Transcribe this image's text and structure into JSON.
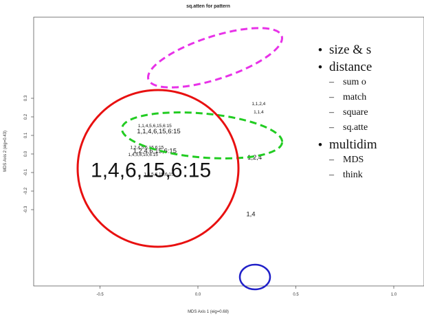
{
  "chart_data": {
    "type": "scatter",
    "title": "sq.atten for pattern",
    "xlabel": "MDS Axis 1 (eig=0.68)",
    "ylabel": "MDS Axis 2 (eig=0.43)",
    "xlim": [
      -0.8,
      1.2
    ],
    "ylim": [
      -0.35,
      0.32
    ],
    "x_ticks": [
      "-0.5",
      "0.0",
      "0.5",
      "1.0"
    ],
    "y_ticks": [
      "-0.3",
      "-0.2",
      "-0.1",
      "0.0",
      "0.1",
      "0.2",
      "0.3"
    ],
    "points": [
      {
        "label": "1,1,2,4",
        "x": 0.31,
        "y": 0.27,
        "size": "small"
      },
      {
        "label": "1,1,4",
        "x": 0.31,
        "y": 0.225,
        "size": "small"
      },
      {
        "label": "1,1,4,5,6,15,6:15",
        "x": -0.22,
        "y": 0.15,
        "size": "small"
      },
      {
        "label": "1,1,4,6,15,6:15",
        "x": -0.2,
        "y": 0.12,
        "size": "medium"
      },
      {
        "label": "1,2,4,5,6,15,6:15",
        "x": -0.26,
        "y": 0.035,
        "size": "small"
      },
      {
        "label": "1,2,4,6,15,6:15",
        "x": -0.22,
        "y": 0.015,
        "size": "medium"
      },
      {
        "label": "1,4,5,6,15,6:15",
        "x": -0.28,
        "y": -0.005,
        "size": "small"
      },
      {
        "label": "1,2,4",
        "x": 0.29,
        "y": -0.02,
        "size": "medium"
      },
      {
        "label": "1,4,6,15,6:15",
        "x": -0.24,
        "y": -0.095,
        "size": "large"
      },
      {
        "label": "1,4,5,6,15,6:15",
        "x": -0.2,
        "y": -0.11,
        "size": "small"
      },
      {
        "label": "1,4",
        "x": 0.27,
        "y": -0.325,
        "size": "medium"
      }
    ],
    "grid": false,
    "highlights": [
      {
        "shape": "ellipse",
        "style": "dashed",
        "color": "#e832e8",
        "encloses": [
          "1,1,2,4",
          "1,1,4",
          "1,1,4,5,6,15,6:15",
          "1,1,4,6,15,6:15"
        ]
      },
      {
        "shape": "ellipse",
        "style": "dashed",
        "color": "#22cc22",
        "encloses": [
          "1,2,4,5,6,15,6:15",
          "1,2,4,6,15,6:15",
          "1,4,5,6,15,6:15",
          "1,2,4"
        ]
      },
      {
        "shape": "circle",
        "style": "solid",
        "color": "#e81010",
        "encloses": [
          "1,4,6,15,6:15"
        ]
      },
      {
        "shape": "circle",
        "style": "solid",
        "color": "#2020c8",
        "encloses": [
          "1,4"
        ]
      }
    ]
  },
  "bullets": [
    {
      "text": "size & s",
      "sub": []
    },
    {
      "text": "distance",
      "sub": [
        "sum o",
        "match",
        "square",
        "sq.atte"
      ]
    },
    {
      "text": "multidim",
      "sub": [
        "MDS",
        "think"
      ]
    }
  ]
}
